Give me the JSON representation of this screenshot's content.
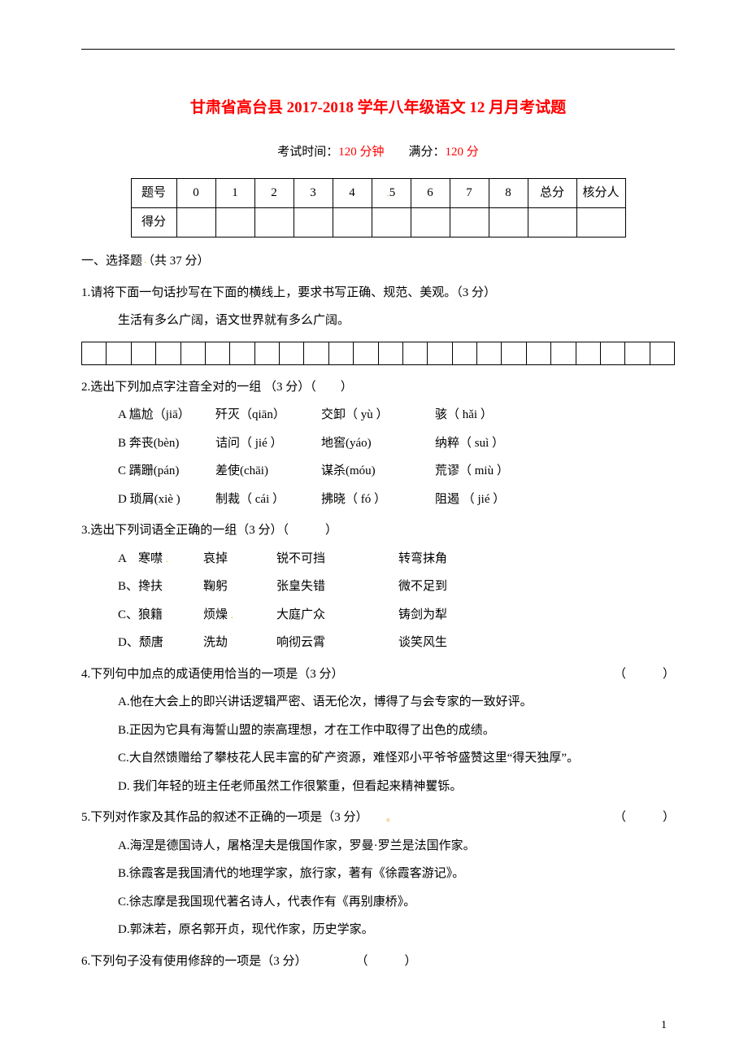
{
  "title": "甘肃省高台县 2017-2018 学年八年级语文 12 月月考试题",
  "subtitle_prefix": "考试时间：",
  "duration": "120 分钟",
  "subtitle_mid": "　　满分：",
  "full_score": "120 分",
  "score_table": {
    "row1_label": "题号",
    "cols": [
      "0",
      "1",
      "2",
      "3",
      "4",
      "5",
      "6",
      "7",
      "8"
    ],
    "total": "总分",
    "checker": "核分人",
    "row2_label": "得分"
  },
  "section1": "一、选择题（共 37 分）",
  "q1": {
    "text": "1.请将下面一句话抄写在下面的横线上，要求书写正确、规范、美观。（3 分）",
    "sentence": "生活有多么广阔，语文世界就有多么广阔。"
  },
  "q2": {
    "text": "2.选出下列加点字注音全对的一组 （3 分）（　　）",
    "A": [
      "A 尴尬（jiā）",
      "歼灭（qiān）",
      "交卸（ yù ）",
      "骇（ hǎi ）"
    ],
    "B": [
      "B 奔丧(bèn)",
      "诘问（ jié ）",
      "地窖(yáo)",
      "纳粹（ suì ）"
    ],
    "C": [
      "C 蹒跚(pán)",
      "差使(chāi)",
      "谋杀(móu)",
      "荒谬（ miù ）"
    ],
    "D": [
      "D 琐屑(xiè )",
      "制裁（ cái ）",
      "拂晓（ fó ）",
      "阻遏 （ jié ）"
    ]
  },
  "q3": {
    "text": "3.选出下列词语全正确的一组（3 分）（　　　）",
    "A": [
      "A　寒噤",
      "哀掉",
      "锐不可挡",
      "转弯抹角"
    ],
    "B": [
      "B、搀扶",
      "鞠躬",
      "张皇失错",
      "微不足到"
    ],
    "C": [
      "C、狼籍",
      "烦燥",
      "大庭广众",
      "铸剑为犁"
    ],
    "D": [
      "D、颓唐",
      "洗劫",
      "响彻云霄",
      "谈笑风生"
    ]
  },
  "q4": {
    "text": "4.下列句中加点的成语使用恰当的一项是（3 分）",
    "paren": "（　　　）",
    "A": "A.他在大会上的即兴讲话逻辑严密、语无伦次，博得了与会专家的一致好评。",
    "B": "B.正因为它具有海誓山盟的崇高理想，才在工作中取得了出色的成绩。",
    "C": "C.大自然馈赠给了攀枝花人民丰富的矿产资源，难怪邓小平爷爷盛赞这里“得天独厚”。",
    "D": "D. 我们年轻的班主任老师虽然工作很繁重，但看起来精神矍铄。"
  },
  "q5": {
    "text_a": "5.下列对作家及其作品的叙述不正确的一项是（3 分）",
    "paren": "（　　　）",
    "A": "A.海涅是德国诗人，屠格涅夫是俄国作家，罗曼·罗兰是法国作家。",
    "B": "B.徐霞客是我国清代的地理学家，旅行家，著有《徐霞客游记》。",
    "C": "C.徐志摩是我国现代著名诗人，代表作有《再别康桥》。",
    "D": "D.郭沫若，原名郭开贞，现代作家，历史学家。"
  },
  "q6": {
    "text": "6.下列句子没有使用修辞的一项是（3 分）",
    "paren": "（　　　）"
  },
  "page_number": "1"
}
